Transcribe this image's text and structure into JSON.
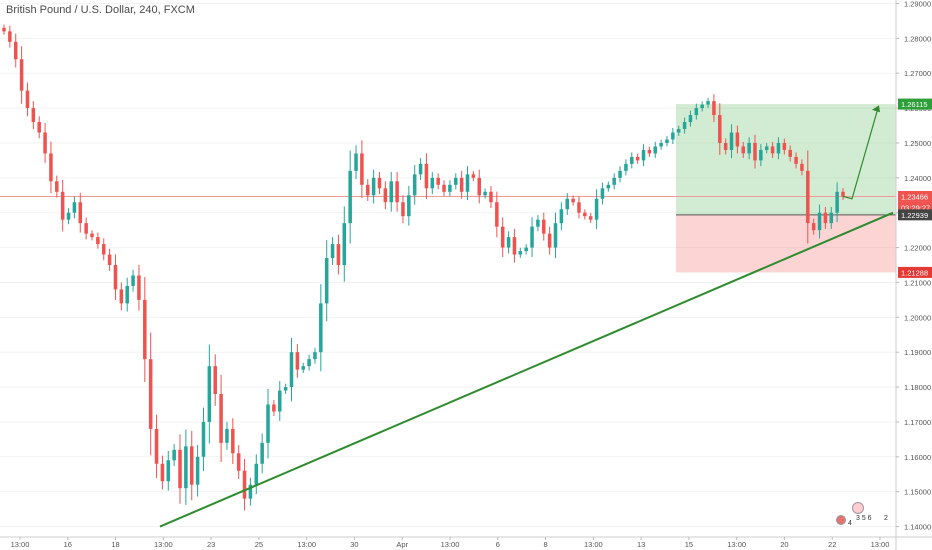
{
  "symbol_title": "British Pound / U.S. Dollar, 240, FXCM",
  "colors": {
    "up": "#26a69a",
    "down": "#ef5350",
    "trendline": "#2e8b2e",
    "target_zone": "rgba(76,175,80,0.25)",
    "stop_zone": "rgba(239,83,80,0.25)",
    "current_price_line": "#ef9a9a",
    "entry_line": "#555555",
    "axis_text": "#555555"
  },
  "price_tags": {
    "target": "1.26115",
    "current": "1.23466",
    "countdown": "03:29:27",
    "entry": "1.22939",
    "stop": "1.21288"
  },
  "events": {
    "left": "4",
    "middle": "3 5 6",
    "right": "2"
  },
  "chart_data": {
    "type": "candlestick",
    "title": "British Pound / U.S. Dollar, 240, FXCM",
    "y_ticks": [
      "1.29000",
      "1.28000",
      "1.27000",
      "1.26000",
      "1.25000",
      "1.24000",
      "1.23000",
      "1.22000",
      "1.21000",
      "1.20000",
      "1.19000",
      "1.18000",
      "1.17000",
      "1.16000",
      "1.15000",
      "1.14000"
    ],
    "ylim": [
      1.137,
      1.291
    ],
    "x_ticks": [
      "13:00",
      "16",
      "18",
      "13:00",
      "23",
      "25",
      "13:00",
      "30",
      "Apr",
      "13:00",
      "6",
      "8",
      "13:00",
      "13",
      "15",
      "13:00",
      "20",
      "22",
      "13:00"
    ],
    "close_path": [
      1.282,
      1.279,
      1.274,
      1.265,
      1.26,
      1.256,
      1.253,
      1.247,
      1.239,
      1.236,
      1.228,
      1.23,
      1.233,
      1.227,
      1.224,
      1.223,
      1.221,
      1.218,
      1.215,
      1.208,
      1.204,
      1.209,
      1.212,
      1.205,
      1.188,
      1.168,
      1.158,
      1.153,
      1.159,
      1.162,
      1.151,
      1.163,
      1.152,
      1.16,
      1.17,
      1.186,
      1.178,
      1.164,
      1.168,
      1.161,
      1.156,
      1.148,
      1.152,
      1.158,
      1.164,
      1.175,
      1.173,
      1.179,
      1.18,
      1.19,
      1.185,
      1.186,
      1.188,
      1.19,
      1.204,
      1.217,
      1.221,
      1.215,
      1.227,
      1.242,
      1.247,
      1.238,
      1.235,
      1.24,
      1.237,
      1.233,
      1.239,
      1.233,
      1.229,
      1.235,
      1.241,
      1.244,
      1.237,
      1.24,
      1.238,
      1.236,
      1.238,
      1.24,
      1.236,
      1.241,
      1.24,
      1.235,
      1.236,
      1.233,
      1.226,
      1.22,
      1.223,
      1.218,
      1.219,
      1.22,
      1.226,
      1.228,
      1.224,
      1.22,
      1.227,
      1.231,
      1.234,
      1.233,
      1.23,
      1.229,
      1.228,
      1.234,
      1.237,
      1.238,
      1.24,
      1.242,
      1.244,
      1.246,
      1.245,
      1.248,
      1.247,
      1.249,
      1.25,
      1.251,
      1.253,
      1.254,
      1.256,
      1.258,
      1.26,
      1.261,
      1.262,
      1.258,
      1.25,
      1.248,
      1.253,
      1.249,
      1.247,
      1.25,
      1.245,
      1.248,
      1.249,
      1.247,
      1.25,
      1.248,
      1.246,
      1.244,
      1.242,
      1.227,
      1.225,
      1.23,
      1.227,
      1.23,
      1.236,
      1.2347
    ],
    "trendline": {
      "from_price": 1.14,
      "to_price": 1.23
    },
    "position": {
      "target": 1.26115,
      "entry": 1.22939,
      "stop": 1.21288,
      "current": 1.23466
    }
  }
}
